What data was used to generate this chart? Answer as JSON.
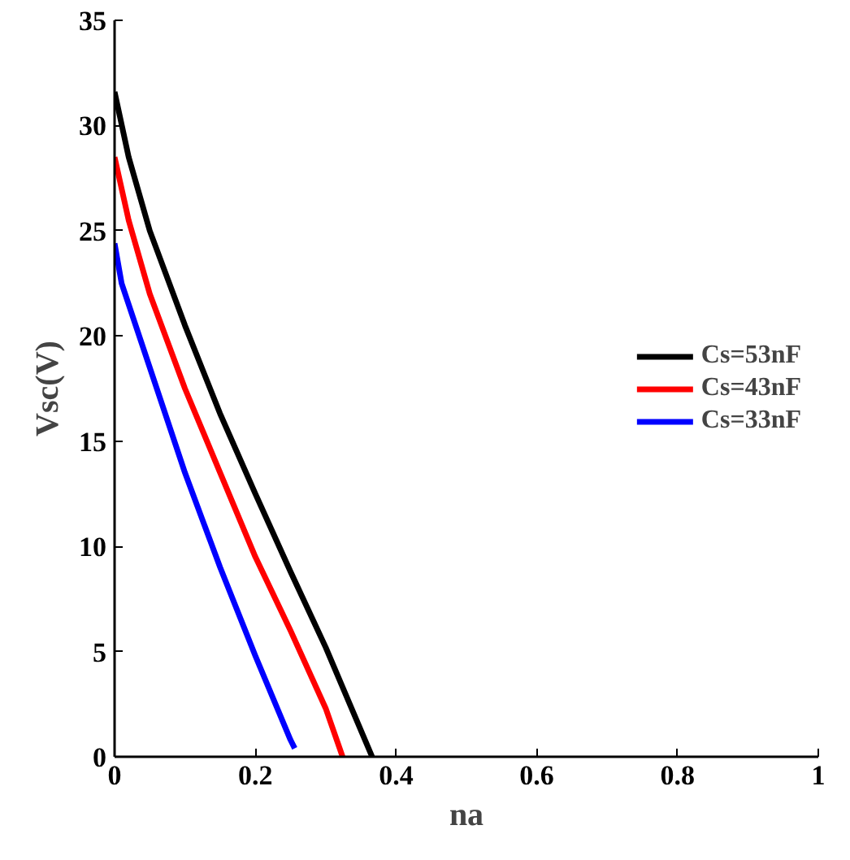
{
  "chart_data": {
    "type": "line",
    "xlabel": "na",
    "ylabel": "Vsc(V)",
    "xlim": [
      0,
      1
    ],
    "ylim": [
      0,
      35
    ],
    "xticks": [
      0,
      0.2,
      0.4,
      0.6,
      0.8,
      1
    ],
    "yticks": [
      0,
      5,
      10,
      15,
      20,
      25,
      30,
      35
    ],
    "grid": false,
    "legend": "right",
    "line_style": "solid",
    "series": [
      {
        "name": "Cs=53nF",
        "color": "#000000",
        "x": [
          0,
          0.02,
          0.05,
          0.1,
          0.15,
          0.2,
          0.25,
          0.3,
          0.366
        ],
        "values": [
          31.6,
          28.5,
          25,
          20.5,
          16.3,
          12.5,
          8.8,
          5.2,
          0
        ]
      },
      {
        "name": "Cs=43nF",
        "color": "#ff0000",
        "x": [
          0,
          0.02,
          0.05,
          0.1,
          0.15,
          0.2,
          0.25,
          0.3,
          0.324
        ],
        "values": [
          28.5,
          25.5,
          22,
          17.5,
          13.5,
          9.5,
          6,
          2.3,
          0
        ]
      },
      {
        "name": "Cs=33nF",
        "color": "#0000ff",
        "x": [
          0,
          0.01,
          0.05,
          0.1,
          0.15,
          0.2,
          0.25,
          0.256
        ],
        "values": [
          24.4,
          22.5,
          18.5,
          13.5,
          9,
          4.8,
          0.8,
          0.4
        ]
      }
    ]
  }
}
